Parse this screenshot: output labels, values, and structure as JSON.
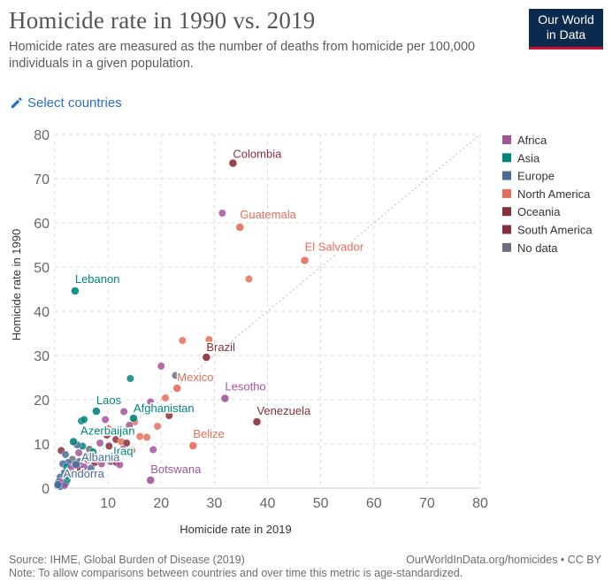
{
  "header": {
    "title": "Homicide rate in 1990 vs. 2019",
    "subtitle": "Homicide rates are measured as the number of deaths from homicide per 100,000 individuals in a given population.",
    "logo_line1": "Our World",
    "logo_line2": "in Data",
    "select_countries": "Select countries"
  },
  "footer": {
    "source": "Source: IHME, Global Burden of Disease (2019)",
    "url": "OurWorldInData.org/homicides • CC BY",
    "note": "Note: To allow comparisons between countries and over time this metric is age-standardized."
  },
  "colors": {
    "Africa": "#a2559c",
    "Asia": "#00847e",
    "Europe": "#4c6a9c",
    "North America": "#e56e5a",
    "Oceania": "#883039",
    "South America": "#883039",
    "No data": "#6d6d7a"
  },
  "chart_data": {
    "type": "scatter",
    "xlabel": "Homicide rate in 2019",
    "ylabel": "Homicide rate in 1990",
    "xlim": [
      0,
      80
    ],
    "ylim": [
      0,
      80
    ],
    "xticks": [
      10,
      20,
      30,
      40,
      50,
      60,
      70,
      80
    ],
    "yticks": [
      0,
      10,
      20,
      30,
      40,
      50,
      60,
      70,
      80
    ],
    "grid": true,
    "diagonal": true,
    "legend_position": "right",
    "legend": [
      "Africa",
      "Asia",
      "Europe",
      "North America",
      "Oceania",
      "South America",
      "No data"
    ],
    "labeled_points": [
      {
        "label": "Colombia",
        "x": 33.5,
        "y": 73.5,
        "region": "South America"
      },
      {
        "label": "Guatemala",
        "x": 34.8,
        "y": 59,
        "region": "North America"
      },
      {
        "label": "El Salvador",
        "x": 47,
        "y": 51.5,
        "region": "North America"
      },
      {
        "label": "Lebanon",
        "x": 3.8,
        "y": 44.6,
        "region": "Asia"
      },
      {
        "label": "Brazil",
        "x": 28.5,
        "y": 29.6,
        "region": "South America"
      },
      {
        "label": "Mexico",
        "x": 23,
        "y": 22.6,
        "region": "North America"
      },
      {
        "label": "Lesotho",
        "x": 32,
        "y": 20.3,
        "region": "Africa"
      },
      {
        "label": "Laos",
        "x": 7.8,
        "y": 17.4,
        "region": "Asia"
      },
      {
        "label": "Afghanistan",
        "x": 14.8,
        "y": 15.8,
        "region": "Asia"
      },
      {
        "label": "Venezuela",
        "x": 38,
        "y": 15,
        "region": "South America"
      },
      {
        "label": "Azerbaijan",
        "x": 3.5,
        "y": 10.5,
        "region": "Asia"
      },
      {
        "label": "Belize",
        "x": 26,
        "y": 9.6,
        "region": "North America"
      },
      {
        "label": "Iraq",
        "x": 11,
        "y": 7.5,
        "region": "Asia"
      },
      {
        "label": "Albania",
        "x": 4,
        "y": 5.3,
        "region": "Europe"
      },
      {
        "label": "Botswana",
        "x": 18,
        "y": 1.8,
        "region": "Africa"
      },
      {
        "label": "Andorra",
        "x": 0.6,
        "y": 0.8,
        "region": "Europe"
      }
    ],
    "points": [
      {
        "x": 31.5,
        "y": 62.2,
        "region": "Africa"
      },
      {
        "x": 36.5,
        "y": 47.3,
        "region": "North America"
      },
      {
        "x": 24,
        "y": 33.4,
        "region": "North America"
      },
      {
        "x": 29,
        "y": 33.6,
        "region": "North America"
      },
      {
        "x": 20,
        "y": 27.6,
        "region": "Africa"
      },
      {
        "x": 22.7,
        "y": 25.5,
        "region": "No data"
      },
      {
        "x": 14.2,
        "y": 24.8,
        "region": "Asia"
      },
      {
        "x": 20.8,
        "y": 20.4,
        "region": "North America"
      },
      {
        "x": 18,
        "y": 19.5,
        "region": "Africa"
      },
      {
        "x": 13,
        "y": 17.3,
        "region": "Africa"
      },
      {
        "x": 21.5,
        "y": 16.4,
        "region": "Oceania"
      },
      {
        "x": 19.3,
        "y": 14,
        "region": "North America"
      },
      {
        "x": 15,
        "y": 15,
        "region": "North America"
      },
      {
        "x": 14,
        "y": 14.2,
        "region": "Africa"
      },
      {
        "x": 16,
        "y": 11.7,
        "region": "North America"
      },
      {
        "x": 17.3,
        "y": 11.5,
        "region": "North America"
      },
      {
        "x": 18.5,
        "y": 8.7,
        "region": "Africa"
      },
      {
        "x": 5,
        "y": 15.2,
        "region": "Asia"
      },
      {
        "x": 5.5,
        "y": 15.5,
        "region": "Asia"
      },
      {
        "x": 9.5,
        "y": 15.5,
        "region": "Africa"
      },
      {
        "x": 10,
        "y": 13.5,
        "region": "North America"
      },
      {
        "x": 9.8,
        "y": 12,
        "region": "Oceania"
      },
      {
        "x": 11.5,
        "y": 11,
        "region": "Oceania"
      },
      {
        "x": 8.5,
        "y": 10.2,
        "region": "Africa"
      },
      {
        "x": 12.5,
        "y": 10.5,
        "region": "North America"
      },
      {
        "x": 10.2,
        "y": 9.5,
        "region": "Oceania"
      },
      {
        "x": 12.8,
        "y": 8.8,
        "region": "Africa"
      },
      {
        "x": 14.5,
        "y": 8.5,
        "region": "North America"
      },
      {
        "x": 5.2,
        "y": 9.5,
        "region": "Asia"
      },
      {
        "x": 6.5,
        "y": 8.8,
        "region": "No data"
      },
      {
        "x": 7.2,
        "y": 8.2,
        "region": "Asia"
      },
      {
        "x": 4.2,
        "y": 9.8,
        "region": "Europe"
      },
      {
        "x": 4.5,
        "y": 8,
        "region": "Africa"
      },
      {
        "x": 5.8,
        "y": 7.2,
        "region": "Europe"
      },
      {
        "x": 6.2,
        "y": 6.4,
        "region": "Africa"
      },
      {
        "x": 7.5,
        "y": 5.8,
        "region": "Oceania"
      },
      {
        "x": 8.8,
        "y": 5.5,
        "region": "Africa"
      },
      {
        "x": 9.6,
        "y": 6.8,
        "region": "No data"
      },
      {
        "x": 10.5,
        "y": 6,
        "region": "Africa"
      },
      {
        "x": 11.6,
        "y": 5.8,
        "region": "Oceania"
      },
      {
        "x": 12.2,
        "y": 5.3,
        "region": "Africa"
      },
      {
        "x": 1.2,
        "y": 8.5,
        "region": "Oceania"
      },
      {
        "x": 2,
        "y": 7.6,
        "region": "Europe"
      },
      {
        "x": 3.3,
        "y": 6.5,
        "region": "No data"
      },
      {
        "x": 2.5,
        "y": 5.8,
        "region": "Europe"
      },
      {
        "x": 1.5,
        "y": 5.5,
        "region": "Europe"
      },
      {
        "x": 2.2,
        "y": 4.8,
        "region": "Asia"
      },
      {
        "x": 3,
        "y": 4.5,
        "region": "Africa"
      },
      {
        "x": 4.8,
        "y": 4.2,
        "region": "Oceania"
      },
      {
        "x": 5.5,
        "y": 4.8,
        "region": "Africa"
      },
      {
        "x": 6.8,
        "y": 4.5,
        "region": "Europe"
      },
      {
        "x": 1.8,
        "y": 3.5,
        "region": "Europe"
      },
      {
        "x": 2.8,
        "y": 3.2,
        "region": "Europe"
      },
      {
        "x": 3.6,
        "y": 3,
        "region": "Asia"
      },
      {
        "x": 1,
        "y": 2.5,
        "region": "Europe"
      },
      {
        "x": 1.6,
        "y": 2,
        "region": "Europe"
      },
      {
        "x": 2.3,
        "y": 1.8,
        "region": "Asia"
      },
      {
        "x": 0.8,
        "y": 1.5,
        "region": "Europe"
      },
      {
        "x": 1.3,
        "y": 1.2,
        "region": "Africa"
      },
      {
        "x": 2,
        "y": 1,
        "region": "Asia"
      },
      {
        "x": 0.5,
        "y": 0.6,
        "region": "Europe"
      },
      {
        "x": 1,
        "y": 0.4,
        "region": "Asia"
      },
      {
        "x": 1.8,
        "y": 0.6,
        "region": "Africa"
      },
      {
        "x": 3.8,
        "y": 5.5,
        "region": "Europe"
      },
      {
        "x": 4.6,
        "y": 6,
        "region": "Europe"
      },
      {
        "x": 8,
        "y": 6.5,
        "region": "North America"
      },
      {
        "x": 13.5,
        "y": 10.2,
        "region": "Oceania"
      }
    ]
  }
}
